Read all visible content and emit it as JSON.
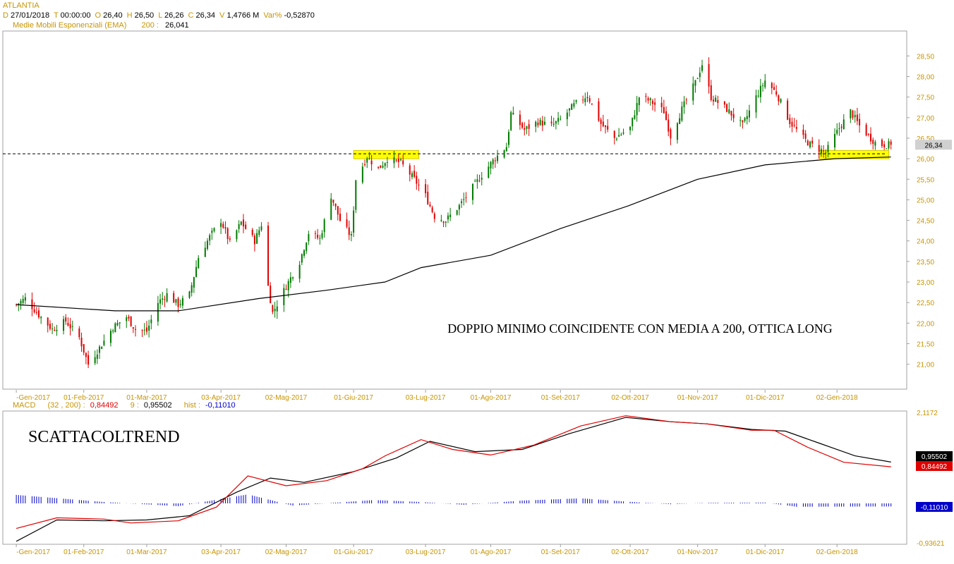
{
  "header": {
    "symbol": "ATLANTIA",
    "line1": [
      {
        "k": "D",
        "v": "27/01/2018"
      },
      {
        "k": "T",
        "v": "00:00:00"
      },
      {
        "k": "O",
        "v": "26,40"
      },
      {
        "k": "H",
        "v": "26,50"
      },
      {
        "k": "L",
        "v": "26,26"
      },
      {
        "k": "C",
        "v": "26,34"
      },
      {
        "k": "V",
        "v": "1,4766 M"
      },
      {
        "k": "Var%",
        "v": "-0,52870"
      }
    ],
    "ema_label": "Medie Mobili Esponenziali (EMA)",
    "ema_period": "200",
    "ema_value": "26,041"
  },
  "macd_header": {
    "label": "MACD",
    "params": "(32 , 200)",
    "macd_value": "0,84492",
    "signal_period": "9",
    "signal_value": "0,95502",
    "hist_label": "hist",
    "hist_value": "-0,11010"
  },
  "colors": {
    "up": "#007a00",
    "down": "#e00000",
    "ema": "#000000",
    "macd_line": "#e00000",
    "signal_line": "#000000",
    "histogram": "#0000c8",
    "highlight": "#ffff00",
    "axis_text": "#c89400"
  },
  "chart_data": [
    {
      "type": "candlestick",
      "title": "ATLANTIA",
      "x_labels": [
        "-Gen-2017",
        "01-Feb-2017",
        "01-Mar-2017",
        "03-Apr-2017",
        "02-Mag-2017",
        "01-Giu-2017",
        "03-Lug-2017",
        "01-Ago-2017",
        "01-Set-2017",
        "02-Ott-2017",
        "01-Nov-2017",
        "01-Dic-2017",
        "02-Gen-2018"
      ],
      "x_dates": [
        "2017-01-02",
        "2017-02-01",
        "2017-03-01",
        "2017-04-03",
        "2017-05-02",
        "2017-06-01",
        "2017-07-03",
        "2017-08-01",
        "2017-09-01",
        "2017-10-02",
        "2017-11-01",
        "2017-12-01",
        "2018-01-02"
      ],
      "y_ticks": [
        "21,00",
        "21,50",
        "22,00",
        "22,50",
        "23,00",
        "23,50",
        "24,00",
        "24,50",
        "25,00",
        "25,50",
        "26,00",
        "26,50",
        "27,00",
        "27,50",
        "28,00",
        "28,50"
      ],
      "ylim": [
        20.6,
        28.9
      ],
      "xlim": [
        "2016-12-27",
        "2018-02-02"
      ],
      "close_path": [
        [
          "2017-01-02",
          22.45
        ],
        [
          "2017-01-06",
          22.6
        ],
        [
          "2017-01-12",
          22.2
        ],
        [
          "2017-01-18",
          21.85
        ],
        [
          "2017-01-24",
          22.05
        ],
        [
          "2017-01-30",
          21.65
        ],
        [
          "2017-02-03",
          21.0
        ],
        [
          "2017-02-08",
          21.4
        ],
        [
          "2017-02-14",
          21.9
        ],
        [
          "2017-02-20",
          22.15
        ],
        [
          "2017-02-24",
          21.85
        ],
        [
          "2017-03-01",
          21.8
        ],
        [
          "2017-03-06",
          22.5
        ],
        [
          "2017-03-10",
          22.7
        ],
        [
          "2017-03-15",
          22.45
        ],
        [
          "2017-03-20",
          22.7
        ],
        [
          "2017-03-24",
          23.6
        ],
        [
          "2017-03-29",
          24.1
        ],
        [
          "2017-04-03",
          24.5
        ],
        [
          "2017-04-07",
          23.95
        ],
        [
          "2017-04-12",
          24.45
        ],
        [
          "2017-04-18",
          24.0
        ],
        [
          "2017-04-21",
          24.4
        ],
        [
          "2017-04-24",
          22.9
        ],
        [
          "2017-04-26",
          22.25
        ],
        [
          "2017-05-02",
          22.9
        ],
        [
          "2017-05-08",
          23.5
        ],
        [
          "2017-05-12",
          24.2
        ],
        [
          "2017-05-17",
          24.05
        ],
        [
          "2017-05-22",
          25.1
        ],
        [
          "2017-05-26",
          24.5
        ],
        [
          "2017-05-31",
          24.1
        ],
        [
          "2017-06-02",
          25.5
        ],
        [
          "2017-06-07",
          26.05
        ],
        [
          "2017-06-12",
          25.75
        ],
        [
          "2017-06-16",
          26.0
        ],
        [
          "2017-06-22",
          25.9
        ],
        [
          "2017-06-28",
          25.5
        ],
        [
          "2017-07-03",
          25.1
        ],
        [
          "2017-07-07",
          24.6
        ],
        [
          "2017-07-12",
          24.5
        ],
        [
          "2017-07-18",
          24.85
        ],
        [
          "2017-07-24",
          25.3
        ],
        [
          "2017-07-28",
          25.6
        ],
        [
          "2017-08-02",
          25.95
        ],
        [
          "2017-08-08",
          26.3
        ],
        [
          "2017-08-10",
          27.1
        ],
        [
          "2017-08-16",
          26.7
        ],
        [
          "2017-08-22",
          26.9
        ],
        [
          "2017-08-28",
          26.8
        ],
        [
          "2017-09-01",
          26.95
        ],
        [
          "2017-09-07",
          27.3
        ],
        [
          "2017-09-13",
          27.55
        ],
        [
          "2017-09-19",
          26.85
        ],
        [
          "2017-09-25",
          26.5
        ],
        [
          "2017-10-02",
          26.75
        ],
        [
          "2017-10-06",
          27.5
        ],
        [
          "2017-10-11",
          27.4
        ],
        [
          "2017-10-17",
          27.15
        ],
        [
          "2017-10-20",
          26.55
        ],
        [
          "2017-10-25",
          27.2
        ],
        [
          "2017-10-31",
          27.85
        ],
        [
          "2017-11-03",
          28.3
        ],
        [
          "2017-11-07",
          27.5
        ],
        [
          "2017-11-14",
          27.2
        ],
        [
          "2017-11-21",
          26.8
        ],
        [
          "2017-11-27",
          27.5
        ],
        [
          "2017-12-01",
          27.9
        ],
        [
          "2017-12-06",
          27.6
        ],
        [
          "2017-12-12",
          26.9
        ],
        [
          "2017-12-18",
          26.5
        ],
        [
          "2017-12-21",
          26.35
        ],
        [
          "2017-12-28",
          26.15
        ],
        [
          "2018-01-03",
          26.75
        ],
        [
          "2018-01-08",
          27.15
        ],
        [
          "2018-01-12",
          26.8
        ],
        [
          "2018-01-17",
          26.5
        ],
        [
          "2018-01-20",
          26.34
        ]
      ],
      "ema200": {
        "name": "EMA 200",
        "points": [
          [
            "2017-01-02",
            22.45
          ],
          [
            "2017-02-15",
            22.3
          ],
          [
            "2017-03-15",
            22.3
          ],
          [
            "2017-04-20",
            22.6
          ],
          [
            "2017-05-20",
            22.8
          ],
          [
            "2017-06-15",
            23.0
          ],
          [
            "2017-07-01",
            23.35
          ],
          [
            "2017-08-01",
            23.65
          ],
          [
            "2017-09-01",
            24.3
          ],
          [
            "2017-10-01",
            24.85
          ],
          [
            "2017-11-01",
            25.5
          ],
          [
            "2017-12-01",
            25.85
          ],
          [
            "2018-01-01",
            26.0
          ],
          [
            "2018-01-26",
            26.041
          ]
        ]
      },
      "horizontal_line": 26.12,
      "highlights": [
        {
          "from": "2017-06-01",
          "to": "2017-06-30",
          "low": 26.0,
          "high": 26.2
        },
        {
          "from": "2017-12-25",
          "to": "2018-01-25",
          "low": 26.0,
          "high": 26.2
        }
      ],
      "last_price": 26.34,
      "last_price_label": "26,34",
      "annotation": "DOPPIO MINIMO COINCIDENTE CON MEDIA A 200, OTTICA LONG"
    },
    {
      "type": "line",
      "title": "MACD",
      "x_labels": [
        "-Gen-2017",
        "01-Feb-2017",
        "01-Mar-2017",
        "03-Apr-2017",
        "02-Mag-2017",
        "01-Giu-2017",
        "03-Lug-2017",
        "01-Ago-2017",
        "01-Set-2017",
        "02-Ott-2017",
        "01-Nov-2017",
        "01-Dic-2017",
        "02-Gen-2018"
      ],
      "y_range_labels": [
        "2,1172",
        "-0,93621"
      ],
      "ylim": [
        -0.93621,
        2.1172
      ],
      "watermark": "SCATTACOLTREND",
      "series": [
        {
          "name": "MACD",
          "color": "#e00000",
          "points": [
            [
              "2017-01-02",
              -0.6
            ],
            [
              "2017-01-20",
              -0.35
            ],
            [
              "2017-02-10",
              -0.38
            ],
            [
              "2017-02-22",
              -0.47
            ],
            [
              "2017-03-15",
              -0.42
            ],
            [
              "2017-04-01",
              -0.1
            ],
            [
              "2017-04-15",
              0.63
            ],
            [
              "2017-05-02",
              0.4
            ],
            [
              "2017-05-20",
              0.52
            ],
            [
              "2017-06-05",
              0.8
            ],
            [
              "2017-06-15",
              1.1
            ],
            [
              "2017-07-01",
              1.48
            ],
            [
              "2017-07-15",
              1.25
            ],
            [
              "2017-08-01",
              1.12
            ],
            [
              "2017-08-20",
              1.35
            ],
            [
              "2017-09-10",
              1.8
            ],
            [
              "2017-09-30",
              2.04
            ],
            [
              "2017-10-20",
              1.9
            ],
            [
              "2017-11-05",
              1.85
            ],
            [
              "2017-11-25",
              1.7
            ],
            [
              "2017-12-05",
              1.7
            ],
            [
              "2017-12-20",
              1.3
            ],
            [
              "2018-01-05",
              0.95
            ],
            [
              "2018-01-26",
              0.84492
            ]
          ]
        },
        {
          "name": "Signal",
          "color": "#000000",
          "points": [
            [
              "2017-01-02",
              -0.9
            ],
            [
              "2017-01-20",
              -0.4
            ],
            [
              "2017-02-10",
              -0.42
            ],
            [
              "2017-03-01",
              -0.4
            ],
            [
              "2017-03-20",
              -0.3
            ],
            [
              "2017-04-10",
              0.25
            ],
            [
              "2017-04-25",
              0.58
            ],
            [
              "2017-05-10",
              0.48
            ],
            [
              "2017-06-01",
              0.73
            ],
            [
              "2017-06-20",
              1.05
            ],
            [
              "2017-07-05",
              1.44
            ],
            [
              "2017-07-25",
              1.2
            ],
            [
              "2017-08-15",
              1.25
            ],
            [
              "2017-09-05",
              1.62
            ],
            [
              "2017-09-30",
              2.0
            ],
            [
              "2017-10-20",
              1.9
            ],
            [
              "2017-11-05",
              1.85
            ],
            [
              "2017-11-25",
              1.72
            ],
            [
              "2017-12-10",
              1.68
            ],
            [
              "2017-12-25",
              1.4
            ],
            [
              "2018-01-10",
              1.1
            ],
            [
              "2018-01-26",
              0.95502
            ]
          ]
        },
        {
          "name": "hist",
          "type": "bar",
          "color": "#0000c8",
          "points": [
            [
              "2017-01-02",
              0.3
            ],
            [
              "2017-02-10",
              0.05
            ],
            [
              "2017-03-15",
              -0.1
            ],
            [
              "2017-04-15",
              0.32
            ],
            [
              "2017-05-05",
              -0.08
            ],
            [
              "2017-06-10",
              0.12
            ],
            [
              "2017-07-01",
              0.05
            ],
            [
              "2017-07-20",
              -0.05
            ],
            [
              "2017-08-15",
              0.1
            ],
            [
              "2017-09-10",
              0.18
            ],
            [
              "2017-10-01",
              0.06
            ],
            [
              "2017-10-20",
              -0.03
            ],
            [
              "2017-11-05",
              0.02
            ],
            [
              "2017-12-01",
              0.03
            ],
            [
              "2017-12-15",
              -0.12
            ],
            [
              "2018-01-26",
              -0.1101
            ]
          ]
        }
      ],
      "last_labels": {
        "signal": "0,95502",
        "macd": "0,84492",
        "hist": "-0,11010"
      }
    }
  ]
}
